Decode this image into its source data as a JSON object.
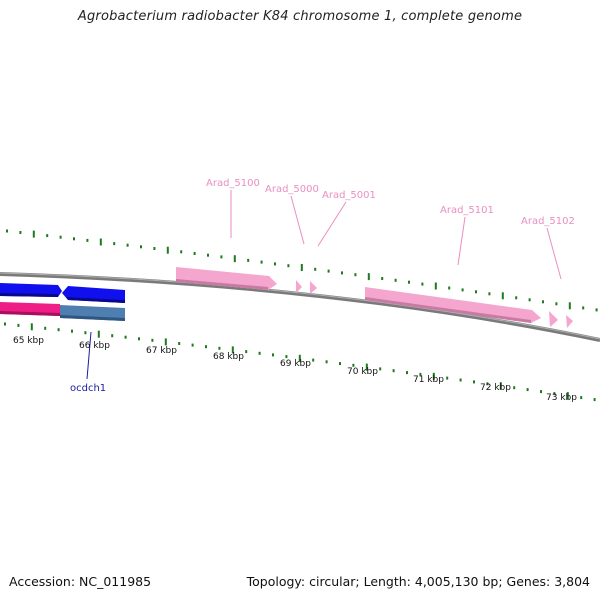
{
  "title": "Agrobacterium radiobacter K84 chromosome 1, complete genome",
  "footer": {
    "accession": "Accession: NC_011985",
    "summary": "Topology: circular; Length: 4,005,130 bp; Genes: 3,804"
  },
  "colors": {
    "backbone": "#7a7a7a",
    "tick": "#1e7a1e",
    "gene_pink": "#f4a6cf",
    "gene_blue": "#1010ee",
    "gene_magenta": "#ee1e86",
    "gene_steel": "#4f7fb0",
    "label_pink": "#e98fc0",
    "label_blue": "#1a1aa6"
  },
  "scale_labels": [
    "65 kbp",
    "66 kbp",
    "67 kbp",
    "68 kbp",
    "69 kbp",
    "70 kbp",
    "71 kbp",
    "72 kbp",
    "73 kbp"
  ],
  "gene_labels": [
    {
      "name": "Arad_5100"
    },
    {
      "name": "Arad_5000"
    },
    {
      "name": "Arad_5001"
    },
    {
      "name": "Arad_5101"
    },
    {
      "name": "Arad_5102"
    }
  ],
  "feature_labels": [
    {
      "name": "ocdch1"
    }
  ]
}
